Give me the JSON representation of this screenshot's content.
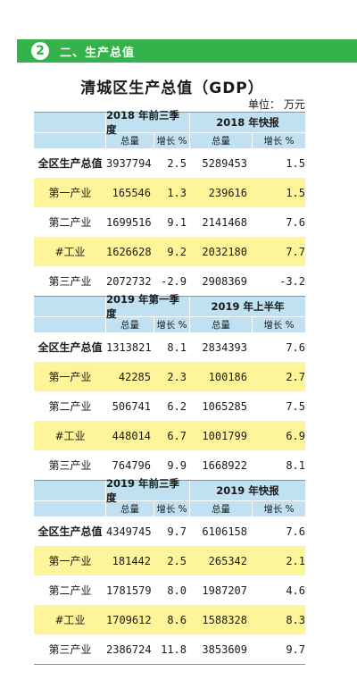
{
  "section": {
    "number": "2",
    "title": "二、生产总值"
  },
  "document": {
    "title": "清城区生产总值（GDP）",
    "unit_label": "单位：",
    "unit_value": "万元"
  },
  "blocks": [
    {
      "period_a": "2018 年前三季度",
      "period_b": "2018 年快报",
      "sub_total": "总量",
      "sub_growth": "增长 %",
      "rows": [
        {
          "label": "全区生产总值",
          "a_total": "3937794",
          "a_growth": "2.5",
          "b_total": "5289453",
          "b_growth": "1.5"
        },
        {
          "label": "第一产业",
          "a_total": "165546",
          "a_growth": "1.3",
          "b_total": "239616",
          "b_growth": "1.5"
        },
        {
          "label": "第二产业",
          "a_total": "1699516",
          "a_growth": "9.1",
          "b_total": "2141468",
          "b_growth": "7.6"
        },
        {
          "label": "#工业",
          "a_total": "1626628",
          "a_growth": "9.2",
          "b_total": "2032180",
          "b_growth": "7.7"
        },
        {
          "label": "第三产业",
          "a_total": "2072732",
          "a_growth": "-2.9",
          "b_total": "2908369",
          "b_growth": "-3.2"
        }
      ]
    },
    {
      "period_a": "2019 年第一季度",
      "period_b": "2019 年上半年",
      "sub_total": "总量",
      "sub_growth": "增长 %",
      "rows": [
        {
          "label": "全区生产总值",
          "a_total": "1313821",
          "a_growth": "8.1",
          "b_total": "2834393",
          "b_growth": "7.6"
        },
        {
          "label": "第一产业",
          "a_total": "42285",
          "a_growth": "2.3",
          "b_total": "100186",
          "b_growth": "2.7"
        },
        {
          "label": "第二产业",
          "a_total": "506741",
          "a_growth": "6.2",
          "b_total": "1065285",
          "b_growth": "7.5"
        },
        {
          "label": "#工业",
          "a_total": "448014",
          "a_growth": "6.7",
          "b_total": "1001799",
          "b_growth": "6.9"
        },
        {
          "label": "第三产业",
          "a_total": "764796",
          "a_growth": "9.9",
          "b_total": "1668922",
          "b_growth": "8.1"
        }
      ]
    },
    {
      "period_a": "2019 年前三季度",
      "period_b": "2019 年快报",
      "sub_total": "总量",
      "sub_growth": "增长 %",
      "rows": [
        {
          "label": "全区生产总值",
          "a_total": "4349745",
          "a_growth": "9.7",
          "b_total": "6106158",
          "b_growth": "7.6"
        },
        {
          "label": "第一产业",
          "a_total": "181442",
          "a_growth": "2.5",
          "b_total": "265342",
          "b_growth": "2.1"
        },
        {
          "label": "第二产业",
          "a_total": "1781579",
          "a_growth": "8.0",
          "b_total": "1987207",
          "b_growth": "4.6"
        },
        {
          "label": "#工业",
          "a_total": "1709612",
          "a_growth": "8.6",
          "b_total": "1588328",
          "b_growth": "8.3"
        },
        {
          "label": "第三产业",
          "a_total": "2386724",
          "a_growth": "11.8",
          "b_total": "3853609",
          "b_growth": "9.7"
        }
      ]
    }
  ],
  "colors": {
    "section_bar": "#34b34a",
    "header_bg": "#bfe1f1",
    "highlight_row": "#fdf59a",
    "rule": "#5aa5d0"
  }
}
